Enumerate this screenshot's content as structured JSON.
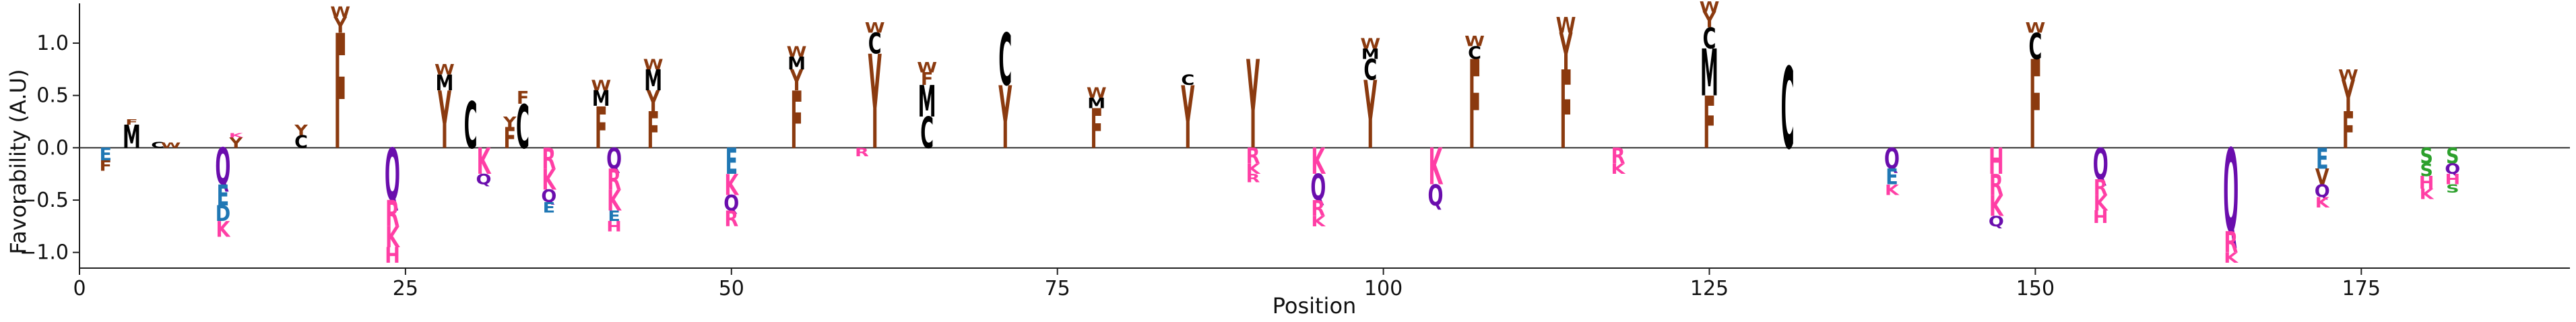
{
  "chart_data": {
    "type": "sequence-logo",
    "xlabel": "Position",
    "ylabel": "Favorability (A.U)",
    "xlim": [
      0,
      191
    ],
    "ylim": [
      -1.15,
      1.38
    ],
    "xticks": [
      0,
      25,
      50,
      75,
      100,
      125,
      150,
      175
    ],
    "yticks": [
      -1.0,
      -0.5,
      0.0,
      0.5,
      1.0,
      1.5
    ],
    "ytick_labels": [
      "−1.0",
      "−0.5",
      "0.0",
      "0.5",
      "1.0"
    ],
    "residue_colors": {
      "F": "#8B3A0F",
      "Y": "#8B3A0F",
      "W": "#8B3A0F",
      "M": "#000000",
      "C": "#000000",
      "A": "#000000",
      "Q": "#6A0DAD",
      "N": "#6A0DAD",
      "K": "#FF3EA5",
      "R": "#FF3EA5",
      "H": "#FF3EA5",
      "E": "#1F77B4",
      "D": "#1F77B4",
      "S": "#2CA02C",
      "T": "#2CA02C",
      "G": "#FF7F0E",
      "P": "#FF7F0E",
      "V": "#8B3A0F",
      "I": "#8B3A0F",
      "L": "#000000"
    },
    "positive": [
      {
        "x": 4,
        "letters": [
          [
            "M",
            0.22
          ],
          [
            "F",
            0.05
          ]
        ]
      },
      {
        "x": 6,
        "letters": [
          [
            "C",
            0.06
          ]
        ]
      },
      {
        "x": 7,
        "letters": [
          [
            "W",
            0.05
          ]
        ]
      },
      {
        "x": 12,
        "letters": [
          [
            "Y",
            0.1
          ],
          [
            "K",
            0.04
          ]
        ]
      },
      {
        "x": 17,
        "letters": [
          [
            "C",
            0.12
          ],
          [
            "Y",
            0.1
          ]
        ]
      },
      {
        "x": 20,
        "letters": [
          [
            "F",
            1.1
          ],
          [
            "Y",
            0.15
          ],
          [
            "W",
            0.1
          ]
        ]
      },
      {
        "x": 28,
        "letters": [
          [
            "Y",
            0.55
          ],
          [
            "M",
            0.15
          ],
          [
            "W",
            0.1
          ]
        ]
      },
      {
        "x": 30,
        "letters": [
          [
            "C",
            0.45
          ]
        ]
      },
      {
        "x": 33,
        "letters": [
          [
            "F",
            0.2
          ],
          [
            "Y",
            0.1
          ]
        ]
      },
      {
        "x": 34,
        "letters": [
          [
            "C",
            0.42
          ],
          [
            "F",
            0.12
          ]
        ]
      },
      {
        "x": 40,
        "letters": [
          [
            "F",
            0.4
          ],
          [
            "M",
            0.15
          ],
          [
            "W",
            0.1
          ]
        ]
      },
      {
        "x": 44,
        "letters": [
          [
            "F",
            0.35
          ],
          [
            "Y",
            0.2
          ],
          [
            "M",
            0.2
          ],
          [
            "W",
            0.1
          ]
        ]
      },
      {
        "x": 55,
        "letters": [
          [
            "F",
            0.55
          ],
          [
            "Y",
            0.2
          ],
          [
            "M",
            0.12
          ],
          [
            "W",
            0.1
          ]
        ]
      },
      {
        "x": 61,
        "letters": [
          [
            "Y",
            0.9
          ],
          [
            "C",
            0.2
          ],
          [
            "W",
            0.1
          ]
        ]
      },
      {
        "x": 65,
        "letters": [
          [
            "C",
            0.3
          ],
          [
            "M",
            0.3
          ],
          [
            "F",
            0.12
          ],
          [
            "W",
            0.1
          ]
        ]
      },
      {
        "x": 71,
        "letters": [
          [
            "Y",
            0.6
          ],
          [
            "C",
            0.5
          ]
        ]
      },
      {
        "x": 78,
        "letters": [
          [
            "F",
            0.38
          ],
          [
            "M",
            0.1
          ],
          [
            "W",
            0.1
          ]
        ]
      },
      {
        "x": 85,
        "letters": [
          [
            "Y",
            0.6
          ],
          [
            "C",
            0.1
          ]
        ]
      },
      {
        "x": 90,
        "letters": [
          [
            "Y",
            0.85
          ]
        ]
      },
      {
        "x": 99,
        "letters": [
          [
            "Y",
            0.65
          ],
          [
            "C",
            0.2
          ],
          [
            "M",
            0.1
          ],
          [
            "W",
            0.1
          ]
        ]
      },
      {
        "x": 107,
        "letters": [
          [
            "F",
            0.85
          ],
          [
            "C",
            0.12
          ],
          [
            "W",
            0.1
          ]
        ]
      },
      {
        "x": 114,
        "letters": [
          [
            "F",
            0.75
          ],
          [
            "Y",
            0.35
          ],
          [
            "W",
            0.15
          ]
        ]
      },
      {
        "x": 125,
        "letters": [
          [
            "F",
            0.5
          ],
          [
            "M",
            0.45
          ],
          [
            "C",
            0.2
          ],
          [
            "Y",
            0.15
          ],
          [
            "W",
            0.1
          ]
        ]
      },
      {
        "x": 131,
        "letters": [
          [
            "C",
            0.78
          ]
        ]
      },
      {
        "x": 150,
        "letters": [
          [
            "F",
            0.85
          ],
          [
            "C",
            0.25
          ],
          [
            "W",
            0.1
          ]
        ]
      },
      {
        "x": 174,
        "letters": [
          [
            "F",
            0.35
          ],
          [
            "Y",
            0.3
          ],
          [
            "W",
            0.1
          ]
        ]
      }
    ],
    "negative": [
      {
        "x": 2,
        "letters": [
          [
            "F",
            0.1
          ],
          [
            "E",
            0.12
          ]
        ]
      },
      {
        "x": 11,
        "letters": [
          [
            "Q",
            0.35
          ],
          [
            "E",
            0.2
          ],
          [
            "D",
            0.15
          ],
          [
            "K",
            0.15
          ]
        ]
      },
      {
        "x": 24,
        "letters": [
          [
            "Q",
            0.5
          ],
          [
            "R",
            0.25
          ],
          [
            "K",
            0.2
          ],
          [
            "H",
            0.15
          ]
        ]
      },
      {
        "x": 31,
        "letters": [
          [
            "K",
            0.25
          ],
          [
            "Q",
            0.1
          ]
        ]
      },
      {
        "x": 36,
        "letters": [
          [
            "R",
            0.2
          ],
          [
            "K",
            0.2
          ],
          [
            "Q",
            0.12
          ],
          [
            "E",
            0.1
          ]
        ]
      },
      {
        "x": 41,
        "letters": [
          [
            "E",
            0.1
          ],
          [
            "Q",
            0.2
          ],
          [
            "R",
            0.2
          ],
          [
            "K",
            0.2
          ],
          [
            "H",
            0.1
          ]
        ]
      },
      {
        "x": 50,
        "letters": [
          [
            "E",
            0.25
          ],
          [
            "Q",
            0.15
          ],
          [
            "K",
            0.2
          ],
          [
            "R",
            0.15
          ]
        ]
      },
      {
        "x": 60,
        "letters": [
          [
            "R",
            0.08
          ]
        ]
      },
      {
        "x": 90,
        "letters": [
          [
            "R",
            0.15
          ],
          [
            "K",
            0.1
          ],
          [
            "R",
            0.08
          ]
        ]
      },
      {
        "x": 95,
        "letters": [
          [
            "K",
            0.25
          ],
          [
            "Q",
            0.25
          ],
          [
            "R",
            0.15
          ],
          [
            "K",
            0.1
          ]
        ]
      },
      {
        "x": 104,
        "letters": [
          [
            "K",
            0.35
          ],
          [
            "Q",
            0.2
          ]
        ]
      },
      {
        "x": 118,
        "letters": [
          [
            "R",
            0.15
          ],
          [
            "K",
            0.1
          ]
        ]
      },
      {
        "x": 139,
        "letters": [
          [
            "Q",
            0.2
          ],
          [
            "E",
            0.15
          ],
          [
            "K",
            0.1
          ]
        ]
      },
      {
        "x": 147,
        "letters": [
          [
            "H",
            0.25
          ],
          [
            "R",
            0.2
          ],
          [
            "K",
            0.2
          ],
          [
            "Q",
            0.1
          ]
        ]
      },
      {
        "x": 155,
        "letters": [
          [
            "Q",
            0.3
          ],
          [
            "R",
            0.15
          ],
          [
            "K",
            0.15
          ],
          [
            "H",
            0.12
          ]
        ]
      },
      {
        "x": 165,
        "letters": [
          [
            "Q",
            0.8
          ],
          [
            "R",
            0.2
          ],
          [
            "K",
            0.1
          ]
        ]
      },
      {
        "x": 172,
        "letters": [
          [
            "E",
            0.2
          ],
          [
            "V",
            0.15
          ],
          [
            "Q",
            0.12
          ],
          [
            "K",
            0.1
          ]
        ]
      },
      {
        "x": 180,
        "letters": [
          [
            "S",
            0.15
          ],
          [
            "S",
            0.12
          ],
          [
            "H",
            0.12
          ],
          [
            "K",
            0.1
          ]
        ]
      },
      {
        "x": 182,
        "letters": [
          [
            "S",
            0.15
          ],
          [
            "Q",
            0.1
          ],
          [
            "H",
            0.1
          ],
          [
            "S",
            0.08
          ]
        ]
      }
    ]
  }
}
